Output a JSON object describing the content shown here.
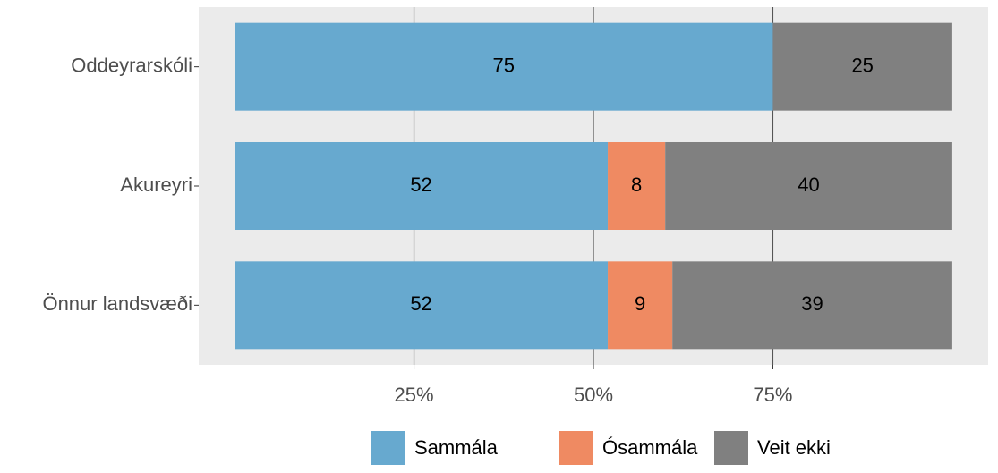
{
  "chart_data": {
    "type": "stacked-bar-horizontal",
    "categories": [
      "Oddeyrarskóli",
      "Akureyri",
      "Önnur landsvæði"
    ],
    "series": [
      {
        "name": "Sammála",
        "color": "#67a9cf",
        "values": [
          75,
          52,
          52
        ]
      },
      {
        "name": "Ósammála",
        "color": "#ef8a62",
        "values": [
          null,
          8,
          9
        ]
      },
      {
        "name": "Veit ekki",
        "color": "#808080",
        "values": [
          25,
          40,
          39
        ]
      }
    ],
    "xlim": [
      -5,
      105
    ],
    "xticks": [
      {
        "value": 25,
        "label": "25%"
      },
      {
        "value": 50,
        "label": "50%"
      },
      {
        "value": 75,
        "label": "75%"
      }
    ],
    "grid": true,
    "legend": "bottom"
  }
}
